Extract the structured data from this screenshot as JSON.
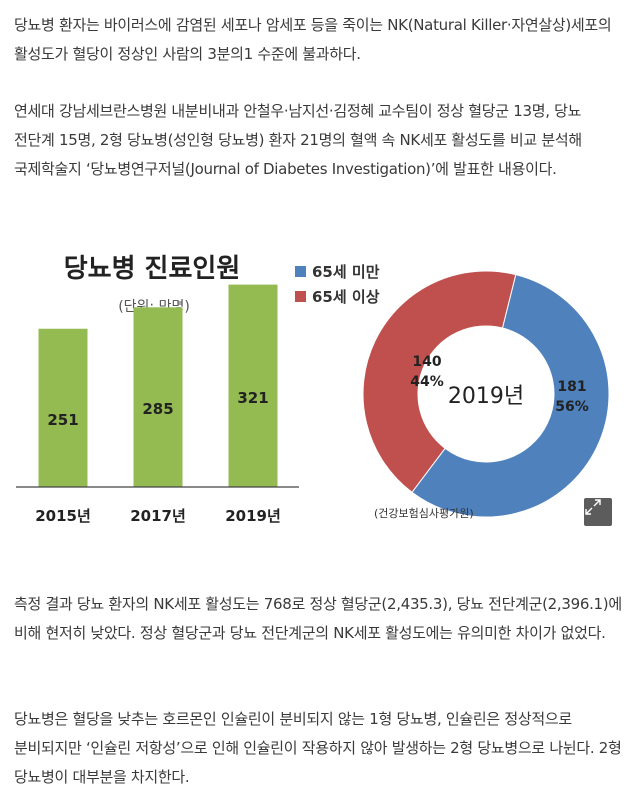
{
  "article": {
    "paragraph1": "당뇨병 환자는 바이러스에 감염된 세포나 암세포 등을 죽이는 NK(Natural Killer·자연살상)세포의 활성도가 혈당이 정상인 사람의 3분의1 수준에 불과하다.",
    "paragraph2": "연세대 강남세브란스병원 내분비내과 안철우·남지선·김정혜 교수팀이 정상 혈당군 13명, 당뇨 전단계 15명, 2형 당뇨병(성인형 당뇨병) 환자 21명의 혈액 속 NK세포 활성도를 비교 분석해 국제학술지 ‘당뇨병연구저널(Journal of Diabetes Investigation)’에 발표한 내용이다.",
    "paragraph3": "측정 결과 당뇨 환자의 NK세포 활성도는 768로 정상 혈당군(2,435.3), 당뇨 전단계군(2,396.1)에 비해 현저히 낮았다. 정상 혈당군과 당뇨 전단계군의 NK세포 활성도에는 유의미한 차이가 없었다.",
    "paragraph4": "당뇨병은 혈당을 낮추는 호르몬인 인슐린이 분비되지 않는 1형 당뇨병, 인슐린은 정상적으로 분비되지만 ‘인슐린 저항성’으로 인해 인슐린이 작용하지 않아 발생하는 2형 당뇨병으로 나뉜다. 2형 당뇨병이 대부분을 차지한다."
  },
  "infographic": {
    "source": "(건강보험심사평가원)",
    "expand_icon": "expand-icon"
  },
  "chart_data": [
    {
      "type": "bar",
      "title": "당뇨병 진료인원",
      "subtitle": "(단위: 만명)",
      "categories": [
        "2015년",
        "2017년",
        "2019년"
      ],
      "values": [
        251,
        285,
        321
      ],
      "color": "#94ba52"
    },
    {
      "type": "pie",
      "center_label": "2019년",
      "slices": [
        {
          "name": "65세 미만",
          "value": 181,
          "percent": "56%",
          "color": "#4f81bd"
        },
        {
          "name": "65세 이상",
          "value": 140,
          "percent": "44%",
          "color": "#c0504d"
        }
      ]
    }
  ]
}
